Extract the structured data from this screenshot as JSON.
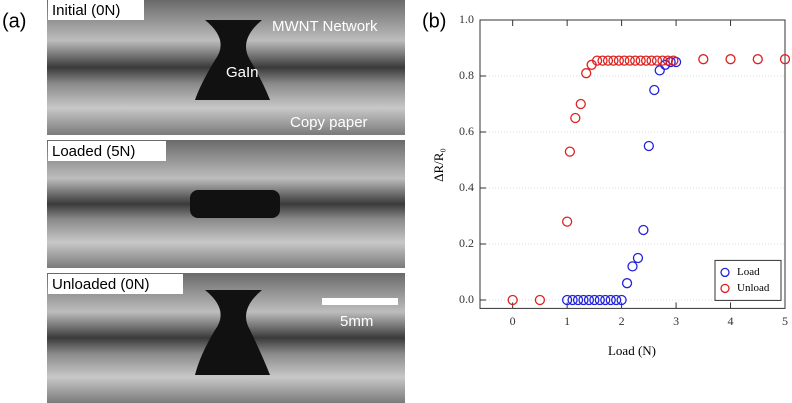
{
  "panel_a": {
    "panel_label": "(a)",
    "initial": "Initial (0N)",
    "network": "MWNT Network",
    "metal": "GaIn",
    "paper": "Copy paper",
    "loaded": "Loaded (5N)",
    "unloaded": "Unloaded (0N)",
    "scale_bar": "5mm"
  },
  "chart_data": {
    "type": "scatter",
    "panel_label": "(b)",
    "x_label": "Load (N)",
    "y_label": "ΔR/R₀",
    "xlim": [
      -0.6,
      5
    ],
    "ylim": [
      -0.03,
      1.0
    ],
    "xticks": [
      0,
      1,
      2,
      3,
      4,
      5
    ],
    "yticks": [
      {
        "value": 0,
        "label": "0.0"
      },
      0.2,
      0.4,
      0.6,
      0.8,
      {
        "value": 1,
        "label": "1.0"
      }
    ],
    "grid": true,
    "legend": "lower right",
    "series": [
      {
        "name": "Load",
        "color": "#2222dd",
        "x": [
          1.0,
          1.1,
          1.2,
          1.3,
          1.4,
          1.5,
          1.6,
          1.7,
          1.8,
          1.9,
          2.0,
          2.1,
          2.2,
          2.3,
          2.4,
          2.5,
          2.6,
          2.7,
          2.8,
          2.9,
          3.0
        ],
        "values": [
          0,
          0,
          0,
          0,
          0,
          0,
          0,
          0,
          0,
          0,
          0,
          0.06,
          0.12,
          0.15,
          0.25,
          0.55,
          0.75,
          0.82,
          0.84,
          0.85,
          0.85
        ]
      },
      {
        "name": "Unload",
        "color": "#dd2222",
        "x": [
          0,
          0.5,
          1.0,
          1.05,
          1.15,
          1.25,
          1.35,
          1.45,
          1.55,
          1.65,
          1.75,
          1.85,
          1.95,
          2.05,
          2.15,
          2.25,
          2.35,
          2.45,
          2.55,
          2.65,
          2.75,
          2.85,
          2.95,
          3.5,
          4.0,
          4.5,
          5.0
        ],
        "values": [
          0,
          0,
          0.28,
          0.53,
          0.65,
          0.7,
          0.81,
          0.84,
          0.855,
          0.855,
          0.855,
          0.855,
          0.855,
          0.855,
          0.855,
          0.855,
          0.855,
          0.855,
          0.855,
          0.855,
          0.855,
          0.855,
          0.855,
          0.86,
          0.86,
          0.86,
          0.86
        ]
      }
    ]
  }
}
